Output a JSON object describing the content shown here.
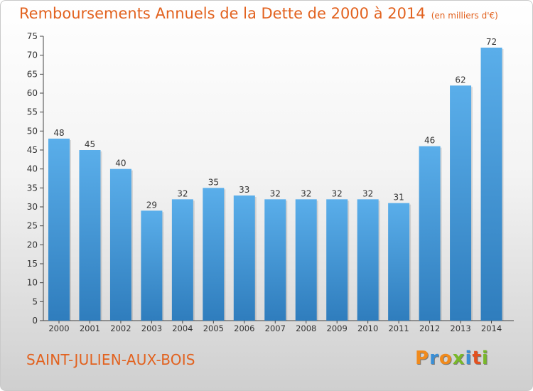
{
  "title": {
    "main": "Remboursements Annuels de la Dette de 2000 à 2014",
    "unit": "(en milliers d'€)"
  },
  "commune": "SAINT-JULIEN-AUX-BOIS",
  "logo": {
    "text": "Proxiti",
    "letter_colors": [
      "#f08a1c",
      "#3a8fd6",
      "#f08a1c",
      "#79b82a",
      "#3a8fd6",
      "#e2511f",
      "#79b82a"
    ]
  },
  "colors": {
    "title": "#e2621f",
    "bar_light": "#5aaeea",
    "bar_dark": "#2f7dbd",
    "axis": "#333333"
  },
  "chart_data": {
    "type": "bar",
    "categories": [
      "2000",
      "2001",
      "2002",
      "2003",
      "2004",
      "2005",
      "2006",
      "2007",
      "2008",
      "2009",
      "2010",
      "2011",
      "2012",
      "2013",
      "2014"
    ],
    "values": [
      48,
      45,
      40,
      29,
      32,
      35,
      33,
      32,
      32,
      32,
      32,
      31,
      46,
      62,
      72
    ],
    "title": "Remboursements Annuels de la Dette de 2000 à 2014",
    "xlabel": "",
    "ylabel": "",
    "ylim": [
      0,
      75
    ],
    "yticks": [
      0,
      5,
      10,
      15,
      20,
      25,
      30,
      35,
      40,
      45,
      50,
      55,
      60,
      65,
      70,
      75
    ],
    "grid": false,
    "data_labels": true
  }
}
